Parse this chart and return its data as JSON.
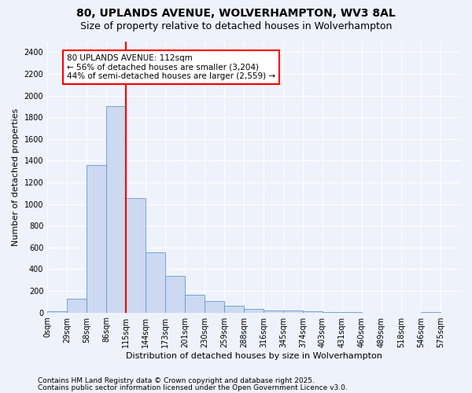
{
  "title1": "80, UPLANDS AVENUE, WOLVERHAMPTON, WV3 8AL",
  "title2": "Size of property relative to detached houses in Wolverhampton",
  "xlabel": "Distribution of detached houses by size in Wolverhampton",
  "ylabel": "Number of detached properties",
  "bin_labels": [
    "0sqm",
    "29sqm",
    "58sqm",
    "86sqm",
    "115sqm",
    "144sqm",
    "173sqm",
    "201sqm",
    "230sqm",
    "259sqm",
    "288sqm",
    "316sqm",
    "345sqm",
    "374sqm",
    "403sqm",
    "431sqm",
    "460sqm",
    "489sqm",
    "518sqm",
    "546sqm",
    "575sqm"
  ],
  "bar_values": [
    15,
    130,
    1360,
    1900,
    1055,
    555,
    335,
    165,
    105,
    60,
    30,
    20,
    20,
    10,
    5,
    5,
    0,
    0,
    0,
    5,
    0
  ],
  "bar_color": "#ccd9f0",
  "bar_edge_color": "#6699cc",
  "red_line_bin": 3.5,
  "annotation_text": "80 UPLANDS AVENUE: 112sqm\n← 56% of detached houses are smaller (3,204)\n44% of semi-detached houses are larger (2,559) →",
  "annotation_box_color": "white",
  "annotation_box_edge": "red",
  "ylim": [
    0,
    2500
  ],
  "yticks": [
    0,
    200,
    400,
    600,
    800,
    1000,
    1200,
    1400,
    1600,
    1800,
    2000,
    2200,
    2400
  ],
  "footer1": "Contains HM Land Registry data © Crown copyright and database right 2025.",
  "footer2": "Contains public sector information licensed under the Open Government Licence v3.0.",
  "bg_color": "#eef2fb",
  "grid_color": "white",
  "title_fontsize": 10,
  "subtitle_fontsize": 9,
  "ylabel_fontsize": 8,
  "xlabel_fontsize": 8,
  "tick_fontsize": 7,
  "footer_fontsize": 6.5,
  "ann_fontsize": 7.5
}
